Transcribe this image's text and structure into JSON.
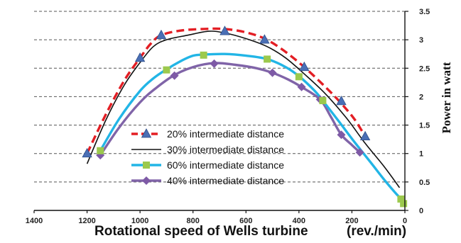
{
  "chart_data": {
    "type": "line",
    "xlabel": "Rotational speed of Wells turbine",
    "xlabel_unit": "(rev./min)",
    "ylabel": "Power in watt",
    "xlim": [
      1400,
      0
    ],
    "ylim": [
      0,
      3.5
    ],
    "x_reversed": true,
    "y_axis_side": "right",
    "x_ticks": [
      "1400",
      "1200",
      "1000",
      "800",
      "600",
      "400",
      "200",
      "0"
    ],
    "y_ticks": [
      "0",
      "0.5",
      "1",
      "1.5",
      "2",
      "2.5",
      "3",
      "3.5"
    ],
    "grid": "horizontal dashed",
    "legend_position": "lower-center",
    "series": [
      {
        "name": "20%  intermediate distance",
        "style": "dashed red line, blue triangle markers",
        "color": "#e31e24",
        "marker_color": "#4a6fb5",
        "markers": [
          [
            1200,
            1.0
          ],
          [
            1000,
            2.68
          ],
          [
            920,
            3.08
          ],
          [
            680,
            3.15
          ],
          [
            530,
            3.0
          ],
          [
            380,
            2.52
          ],
          [
            240,
            1.92
          ],
          [
            150,
            1.3
          ]
        ],
        "curve": [
          [
            1200,
            1.0
          ],
          [
            1130,
            1.68
          ],
          [
            1060,
            2.28
          ],
          [
            1000,
            2.68
          ],
          [
            960,
            2.93
          ],
          [
            920,
            3.08
          ],
          [
            850,
            3.16
          ],
          [
            760,
            3.19
          ],
          [
            680,
            3.19
          ],
          [
            600,
            3.13
          ],
          [
            530,
            3.02
          ],
          [
            460,
            2.82
          ],
          [
            380,
            2.52
          ],
          [
            300,
            2.17
          ],
          [
            240,
            1.88
          ],
          [
            190,
            1.6
          ],
          [
            150,
            1.3
          ]
        ]
      },
      {
        "name": "30%  intermediate distance",
        "style": "solid black line",
        "color": "#111111",
        "markers": [],
        "curve": [
          [
            1200,
            0.82
          ],
          [
            1130,
            1.58
          ],
          [
            1060,
            2.2
          ],
          [
            1000,
            2.6
          ],
          [
            950,
            2.88
          ],
          [
            900,
            3.0
          ],
          [
            820,
            3.08
          ],
          [
            740,
            3.15
          ],
          [
            680,
            3.12
          ],
          [
            600,
            3.02
          ],
          [
            520,
            2.88
          ],
          [
            450,
            2.68
          ],
          [
            380,
            2.4
          ],
          [
            300,
            2.05
          ],
          [
            220,
            1.62
          ],
          [
            150,
            1.18
          ],
          [
            80,
            0.78
          ],
          [
            20,
            0.4
          ]
        ]
      },
      {
        "name": "60%  intermediate distance",
        "style": "solid cyan line, green square markers",
        "color": "#22b5e6",
        "marker_color": "#9cc94d",
        "markers": [
          [
            1150,
            1.05
          ],
          [
            900,
            2.47
          ],
          [
            760,
            2.73
          ],
          [
            520,
            2.66
          ],
          [
            400,
            2.35
          ],
          [
            310,
            1.93
          ],
          [
            15,
            0.2
          ],
          [
            5,
            0.12
          ]
        ],
        "curve": [
          [
            1150,
            1.05
          ],
          [
            1080,
            1.6
          ],
          [
            1000,
            2.1
          ],
          [
            950,
            2.32
          ],
          [
            900,
            2.48
          ],
          [
            840,
            2.64
          ],
          [
            800,
            2.72
          ],
          [
            760,
            2.74
          ],
          [
            680,
            2.75
          ],
          [
            600,
            2.72
          ],
          [
            520,
            2.66
          ],
          [
            450,
            2.52
          ],
          [
            400,
            2.36
          ],
          [
            340,
            2.1
          ],
          [
            310,
            1.93
          ],
          [
            250,
            1.57
          ],
          [
            190,
            1.2
          ],
          [
            130,
            0.85
          ],
          [
            80,
            0.55
          ],
          [
            40,
            0.33
          ],
          [
            15,
            0.2
          ],
          [
            5,
            0.12
          ]
        ]
      },
      {
        "name": "40%  intermediate distance",
        "style": "solid purple line, purple diamond markers",
        "color": "#8064a8",
        "marker_color": "#7e5aa6",
        "markers": [
          [
            1150,
            0.97
          ],
          [
            870,
            2.37
          ],
          [
            720,
            2.58
          ],
          [
            500,
            2.42
          ],
          [
            390,
            2.17
          ],
          [
            320,
            1.95
          ],
          [
            240,
            1.33
          ],
          [
            170,
            1.02
          ]
        ],
        "curve": [
          [
            1150,
            0.97
          ],
          [
            1080,
            1.45
          ],
          [
            1000,
            1.9
          ],
          [
            940,
            2.15
          ],
          [
            870,
            2.38
          ],
          [
            800,
            2.52
          ],
          [
            720,
            2.59
          ],
          [
            640,
            2.56
          ],
          [
            560,
            2.5
          ],
          [
            500,
            2.42
          ],
          [
            440,
            2.3
          ],
          [
            390,
            2.17
          ],
          [
            320,
            1.95
          ],
          [
            280,
            1.65
          ],
          [
            240,
            1.33
          ],
          [
            200,
            1.15
          ],
          [
            170,
            1.02
          ]
        ]
      }
    ]
  }
}
